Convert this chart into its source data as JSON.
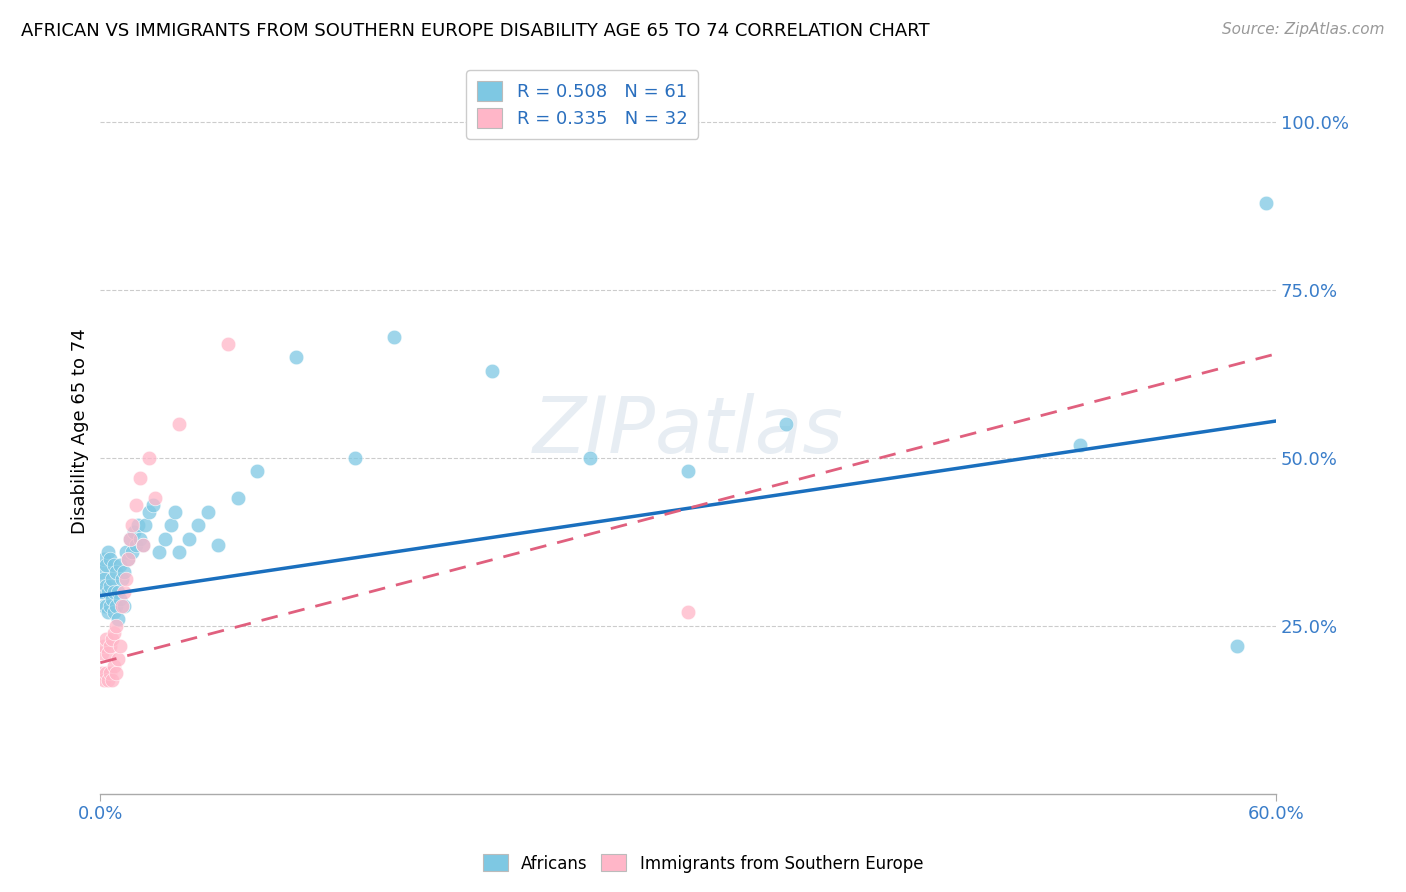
{
  "title": "AFRICAN VS IMMIGRANTS FROM SOUTHERN EUROPE DISABILITY AGE 65 TO 74 CORRELATION CHART",
  "source": "Source: ZipAtlas.com",
  "ylabel": "Disability Age 65 to 74",
  "xmin": 0.0,
  "xmax": 0.6,
  "ymin": 0.0,
  "ymax": 1.08,
  "blue_color": "#7ec8e3",
  "pink_color": "#ffb6c8",
  "blue_line_color": "#1a6fbe",
  "pink_line_color": "#e0607e",
  "legend_R1": "R = 0.508",
  "legend_N1": "N = 61",
  "legend_R2": "R = 0.335",
  "legend_N2": "N = 32",
  "watermark": "ZIPatlas",
  "africans_x": [
    0.001,
    0.001,
    0.002,
    0.002,
    0.002,
    0.003,
    0.003,
    0.003,
    0.004,
    0.004,
    0.004,
    0.005,
    0.005,
    0.005,
    0.006,
    0.006,
    0.007,
    0.007,
    0.007,
    0.008,
    0.008,
    0.009,
    0.009,
    0.01,
    0.01,
    0.011,
    0.012,
    0.012,
    0.013,
    0.014,
    0.015,
    0.016,
    0.017,
    0.018,
    0.019,
    0.02,
    0.022,
    0.023,
    0.025,
    0.027,
    0.03,
    0.033,
    0.036,
    0.038,
    0.04,
    0.045,
    0.05,
    0.055,
    0.06,
    0.07,
    0.08,
    0.1,
    0.13,
    0.15,
    0.2,
    0.25,
    0.3,
    0.35,
    0.5,
    0.58,
    0.595
  ],
  "africans_y": [
    0.3,
    0.33,
    0.28,
    0.32,
    0.35,
    0.28,
    0.31,
    0.34,
    0.27,
    0.3,
    0.36,
    0.28,
    0.31,
    0.35,
    0.29,
    0.32,
    0.27,
    0.3,
    0.34,
    0.28,
    0.33,
    0.26,
    0.3,
    0.29,
    0.34,
    0.32,
    0.28,
    0.33,
    0.36,
    0.35,
    0.38,
    0.36,
    0.39,
    0.37,
    0.4,
    0.38,
    0.37,
    0.4,
    0.42,
    0.43,
    0.36,
    0.38,
    0.4,
    0.42,
    0.36,
    0.38,
    0.4,
    0.42,
    0.37,
    0.44,
    0.48,
    0.65,
    0.5,
    0.68,
    0.63,
    0.5,
    0.48,
    0.55,
    0.52,
    0.22,
    0.88
  ],
  "southern_europe_x": [
    0.001,
    0.001,
    0.002,
    0.002,
    0.003,
    0.003,
    0.004,
    0.004,
    0.005,
    0.005,
    0.006,
    0.006,
    0.007,
    0.007,
    0.008,
    0.008,
    0.009,
    0.01,
    0.011,
    0.012,
    0.013,
    0.014,
    0.015,
    0.016,
    0.018,
    0.02,
    0.022,
    0.025,
    0.028,
    0.04,
    0.065,
    0.3
  ],
  "southern_europe_y": [
    0.18,
    0.21,
    0.17,
    0.22,
    0.18,
    0.23,
    0.17,
    0.21,
    0.18,
    0.22,
    0.17,
    0.23,
    0.19,
    0.24,
    0.18,
    0.25,
    0.2,
    0.22,
    0.28,
    0.3,
    0.32,
    0.35,
    0.38,
    0.4,
    0.43,
    0.47,
    0.37,
    0.5,
    0.44,
    0.55,
    0.67,
    0.27
  ]
}
